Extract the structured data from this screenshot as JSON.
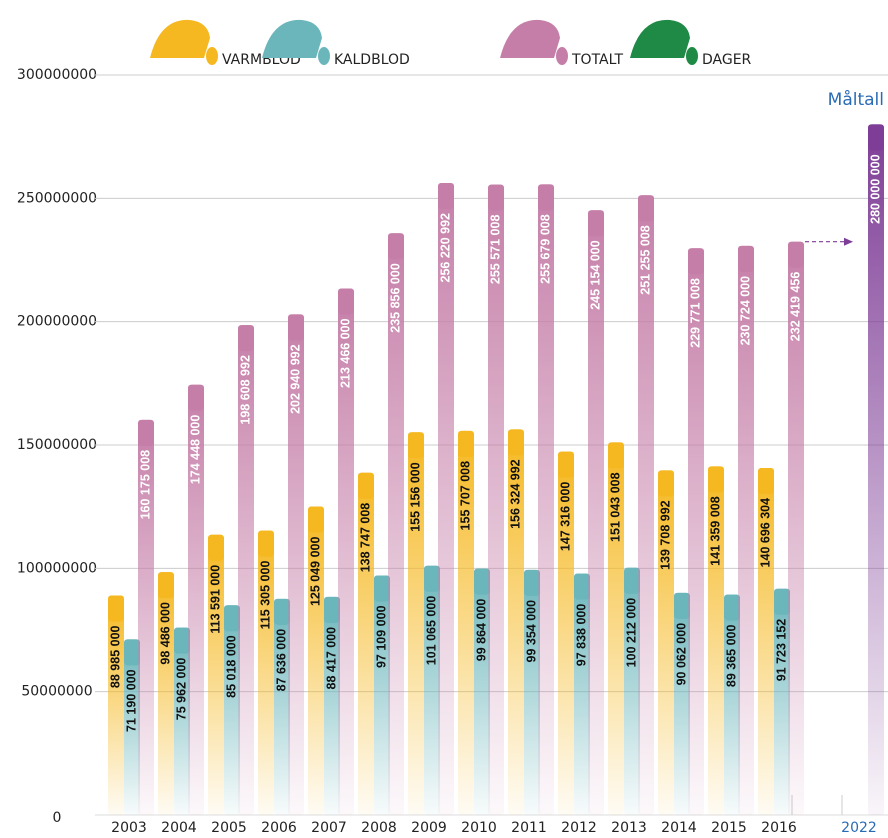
{
  "chart_data": {
    "type": "bar",
    "categories": [
      "2003",
      "2004",
      "2005",
      "2006",
      "2007",
      "2008",
      "2009",
      "2010",
      "2011",
      "2012",
      "2013",
      "2014",
      "2015",
      "2016",
      "2022"
    ],
    "series": [
      {
        "name": "VARMBLOD",
        "color": "#f5b820",
        "values": [
          88985000,
          98486000,
          113591000,
          115305000,
          125049000,
          138747008,
          155156000,
          155707008,
          156324992,
          147316000,
          151043008,
          139708992,
          141359008,
          140696304,
          null
        ],
        "value_labels": [
          "88 985 000",
          "98 486 000",
          "113 591 000",
          "115 305 000",
          "125 049 000",
          "138 747 008",
          "155 156 000",
          "155 707 008",
          "156 324 992",
          "147 316 000",
          "151 043 008",
          "139 708 992",
          "141 359 008",
          "140 696 304",
          null
        ]
      },
      {
        "name": "KALDBLOD",
        "color": "#6bb6bb",
        "values": [
          71190000,
          75962000,
          85018000,
          87636000,
          88417000,
          97109000,
          101065000,
          99864000,
          99354000,
          97838000,
          100212000,
          90062000,
          89365000,
          91723152,
          null
        ],
        "value_labels": [
          "71 190 000",
          "75 962 000",
          "85 018 000",
          "87 636 000",
          "88 417 000",
          "97 109 000",
          "101 065 000",
          "99 864 000",
          "99 354 000",
          "97 838 000",
          "100 212 000",
          "90 062 000",
          "89 365 000",
          "91 723 152",
          null
        ]
      },
      {
        "name": "TOTALT",
        "color": "#c57ea8",
        "values": [
          160175008,
          174448000,
          198608992,
          202940992,
          213466000,
          235856000,
          256220992,
          255571008,
          255679008,
          245154000,
          251255008,
          229771008,
          230724000,
          232419456,
          280000000
        ],
        "value_labels": [
          "160 175 008",
          "174 448 000",
          "198 608 992",
          "202 940 992",
          "213 466 000",
          "235 856 000",
          "256 220 992",
          "255 571 008",
          "255 679 008",
          "245 154 000",
          "251 255 008",
          "229 771 008",
          "230 724 000",
          "232 419 456",
          "280 000 000"
        ]
      },
      {
        "name": "DAGER",
        "color": "#1f8a45",
        "values": [
          null,
          null,
          null,
          null,
          null,
          null,
          null,
          null,
          null,
          null,
          null,
          null,
          null,
          null,
          null
        ]
      }
    ],
    "target": {
      "label": "Måltall",
      "color": "#7e3d96"
    },
    "ylim": [
      0,
      300000000
    ],
    "yticks": [
      0,
      50000000,
      100000000,
      150000000,
      200000000,
      250000000,
      300000000
    ],
    "grid": true
  }
}
